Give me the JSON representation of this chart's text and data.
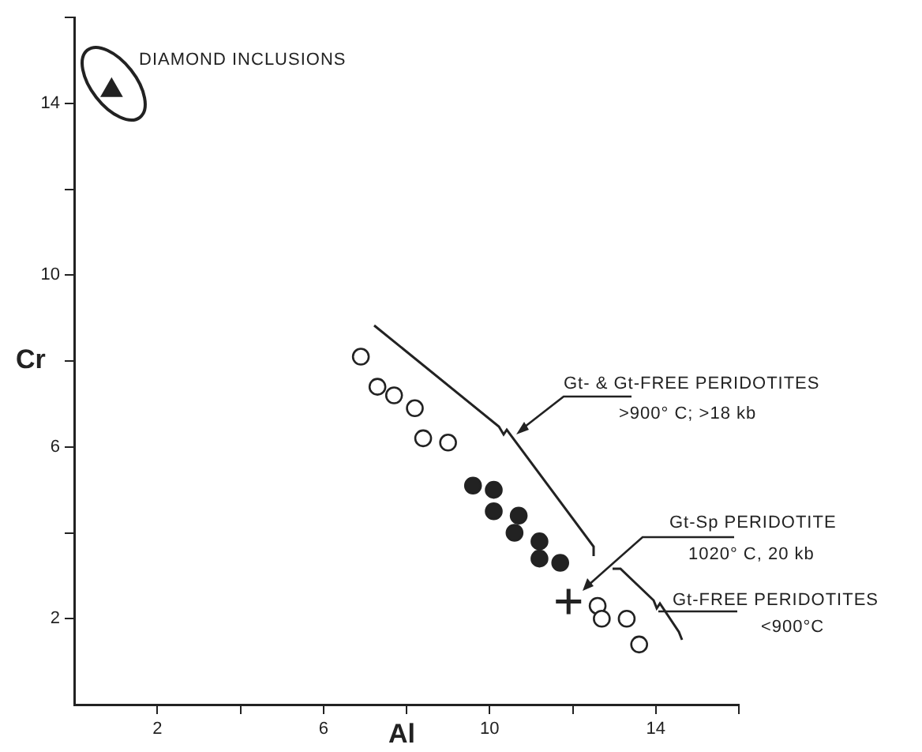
{
  "chart_data": {
    "type": "scatter",
    "xlabel": "Al",
    "ylabel": "Cr",
    "xlim": [
      0,
      16
    ],
    "xticks": [
      2,
      {
        "value": 4,
        "label": null
      },
      6,
      {
        "value": 8,
        "label": null
      },
      10,
      {
        "value": 12,
        "label": null
      },
      14,
      {
        "value": 16,
        "label": null
      }
    ],
    "ylim": [
      0,
      16
    ],
    "yticks": [
      2,
      {
        "value": 4,
        "label": null
      },
      6,
      {
        "value": 8,
        "label": null
      },
      10,
      {
        "value": 12,
        "label": null
      },
      14,
      {
        "value": 16,
        "label": null
      }
    ],
    "grid": false,
    "legend": false,
    "annotations": [
      "DIAMOND INCLUSIONS",
      "Gt- & Gt-FREE PERIDOTITES",
      ">900° C; >18 kb",
      "Gt-Sp PERIDOTITE",
      "1020° C, 20 kb",
      "Gt-FREE PERIDOTITES",
      "<900°C"
    ],
    "series": [
      {
        "color": "#222222",
        "marker": "triangle",
        "x": [
          0.9
        ],
        "values": [
          14.3
        ]
      },
      {
        "color": "#ffffff",
        "marker": "circle",
        "x": [
          6.9,
          7.3,
          7.7,
          8.2,
          8.4,
          9.0
        ],
        "values": [
          8.1,
          7.4,
          7.2,
          6.9,
          6.2,
          6.1
        ]
      },
      {
        "color": "#222222",
        "marker": "circle",
        "x": [
          9.6,
          10.1,
          10.1,
          10.7,
          10.6,
          11.2,
          11.2,
          11.7
        ],
        "values": [
          5.1,
          5.0,
          4.5,
          4.4,
          4.0,
          3.8,
          3.4,
          3.3
        ]
      },
      {
        "color": "#222222",
        "marker": "cross",
        "x": [
          11.9
        ],
        "values": [
          2.4
        ]
      },
      {
        "color": "#ffffff",
        "marker": "circle",
        "x": [
          12.6,
          12.7,
          13.3,
          13.6
        ],
        "values": [
          2.3,
          2.0,
          2.0,
          1.4
        ]
      }
    ]
  }
}
